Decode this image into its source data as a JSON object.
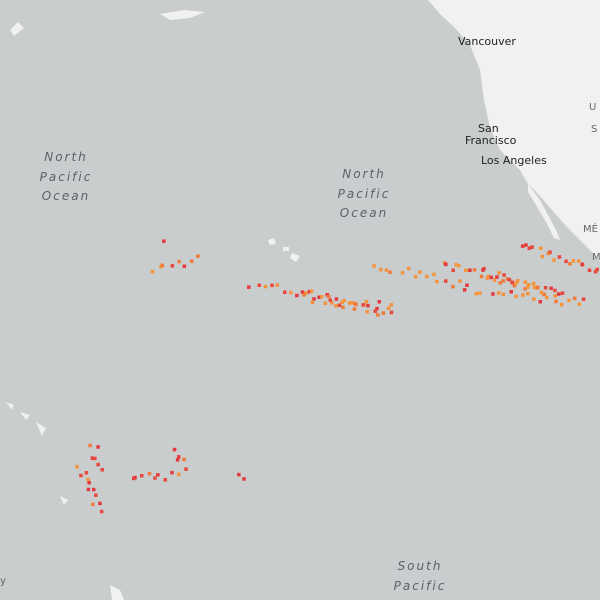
{
  "map": {
    "places": [
      "Vancouver",
      "Los Angeles"
    ],
    "san_francisco": [
      "San",
      "Francisco"
    ],
    "ocean_labels": [
      [
        "North",
        "Pacific",
        "Ocean"
      ],
      [
        "North",
        "Pacific",
        "Ocean"
      ],
      [
        "South",
        "Pacific"
      ]
    ],
    "edge_labels": [
      "U",
      "S",
      "MÉ",
      "M",
      "y"
    ]
  }
}
